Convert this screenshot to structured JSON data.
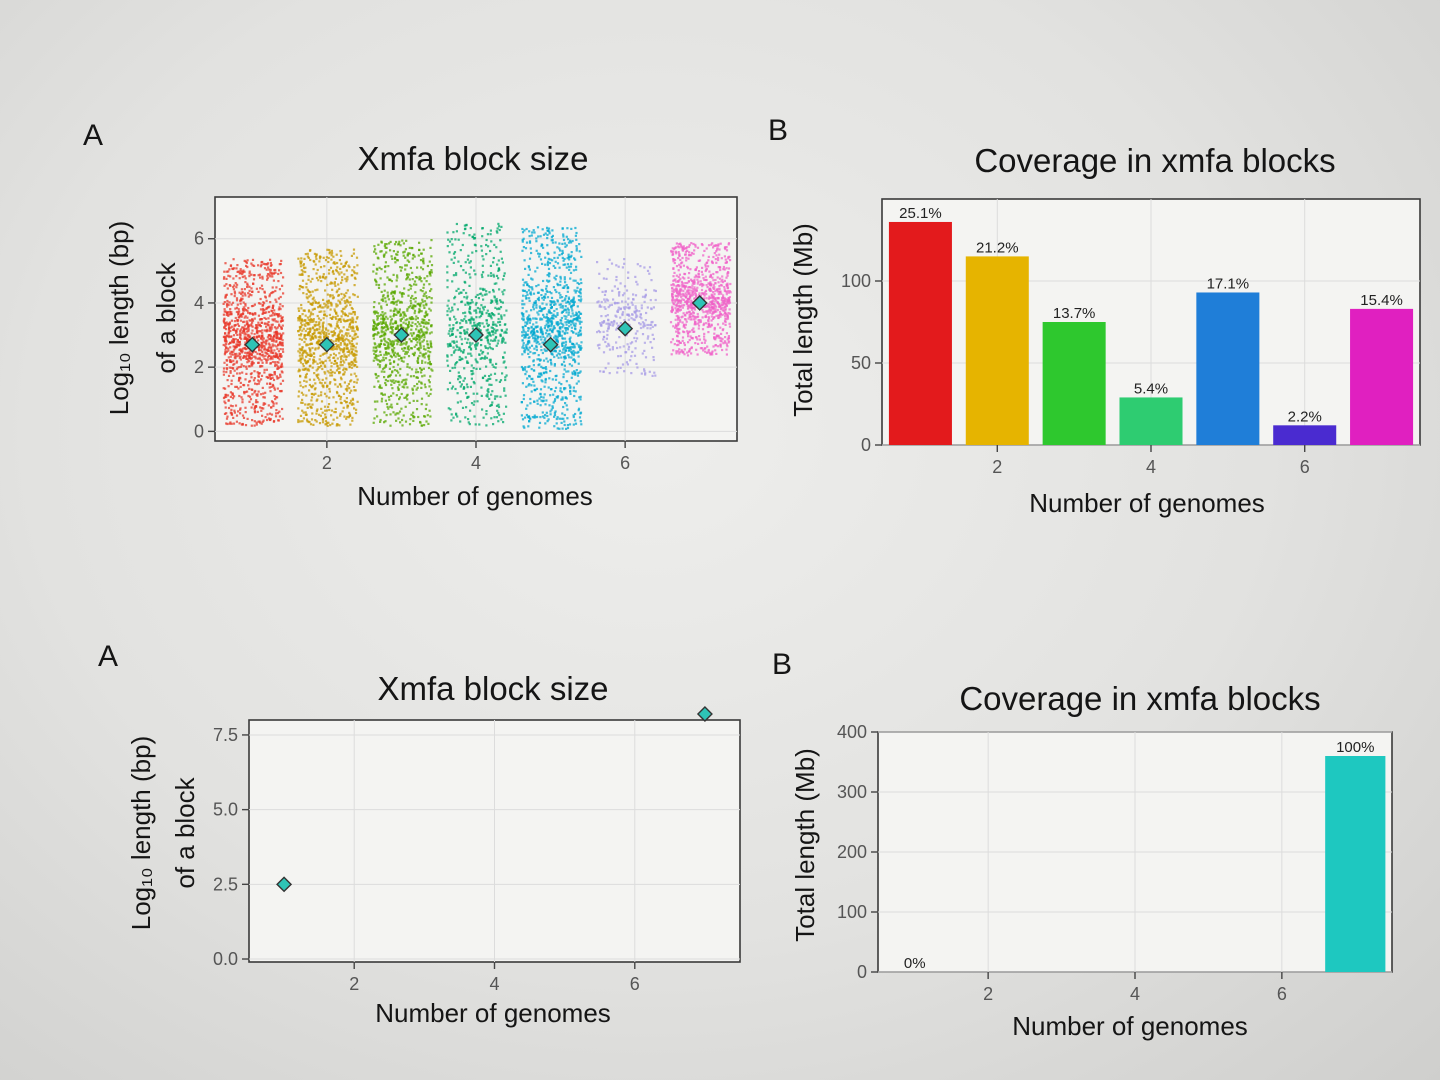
{
  "chart_data": [
    {
      "panel_label": "A",
      "type": "scatter",
      "title": "Xmfa block size",
      "xlabel": "Number of genomes",
      "ylabel_line1": "Log₁₀ length (bp)",
      "ylabel_line2": "of a block",
      "xlim": [
        0.5,
        7.5
      ],
      "ylim": [
        -0.3,
        7.3
      ],
      "xticks": [
        2,
        4,
        6
      ],
      "yticks": [
        0,
        2,
        4,
        6
      ],
      "ytick_labels": [
        "0",
        "2",
        "4",
        "6"
      ],
      "grid": true,
      "series": [
        {
          "x": 1,
          "color": "#e8382a",
          "min": 0.2,
          "max": 5.4,
          "density": 1.0
        },
        {
          "x": 2,
          "color": "#c79a00",
          "min": 0.2,
          "max": 5.7,
          "density": 0.9
        },
        {
          "x": 3,
          "color": "#5aa800",
          "min": 0.2,
          "max": 6.0,
          "density": 0.8
        },
        {
          "x": 4,
          "color": "#00a86b",
          "min": 0.2,
          "max": 6.5,
          "density": 0.55
        },
        {
          "x": 5,
          "color": "#00a8d0",
          "min": 0.1,
          "max": 6.4,
          "density": 0.9
        },
        {
          "x": 6,
          "color": "#a79be6",
          "min": 1.7,
          "max": 5.4,
          "density": 0.25
        },
        {
          "x": 7,
          "color": "#f062c8",
          "min": 2.4,
          "max": 5.9,
          "density": 0.8
        }
      ],
      "means": [
        {
          "x": 1,
          "y": 2.7
        },
        {
          "x": 2,
          "y": 2.7
        },
        {
          "x": 3,
          "y": 3.0
        },
        {
          "x": 4,
          "y": 3.0
        },
        {
          "x": 5,
          "y": 2.7
        },
        {
          "x": 6,
          "y": 3.2
        },
        {
          "x": 7,
          "y": 4.0
        }
      ],
      "mean_marker_color": "#2ec4b6"
    },
    {
      "panel_label": "B",
      "type": "bar",
      "title": "Coverage in xmfa blocks",
      "xlabel": "Number of genomes",
      "ylabel": "Total length (Mb)",
      "xlim": [
        0.5,
        7.5
      ],
      "ylim": [
        0,
        150
      ],
      "xticks": [
        2,
        4,
        6
      ],
      "yticks": [
        0,
        50,
        100
      ],
      "ytick_labels": [
        "0",
        "50",
        "100"
      ],
      "grid": true,
      "x": [
        1,
        2,
        3,
        4,
        5,
        6,
        7
      ],
      "values": [
        136,
        115,
        75,
        29,
        93,
        12,
        83
      ],
      "labels": [
        "25.1%",
        "21.2%",
        "13.7%",
        "5.4%",
        "17.1%",
        "2.2%",
        "15.4%"
      ],
      "colors": [
        "#e31a1c",
        "#e6b400",
        "#2ec82e",
        "#2ecc71",
        "#1f7ed8",
        "#4a2bd0",
        "#e020c0"
      ]
    },
    {
      "panel_label": "A",
      "type": "scatter",
      "title": "Xmfa block size",
      "xlabel": "Number of genomes",
      "ylabel_line1": "Log₁₀ length (bp)",
      "ylabel_line2": "of a block",
      "xlim": [
        0.5,
        7.5
      ],
      "ylim": [
        -0.1,
        8.0
      ],
      "xticks": [
        2,
        4,
        6
      ],
      "yticks": [
        0,
        2.5,
        5,
        7.5
      ],
      "ytick_labels": [
        "0.0",
        "2.5",
        "5.0",
        "7.5"
      ],
      "grid": true,
      "points": [
        {
          "x": 1,
          "y": 2.5
        },
        {
          "x": 7,
          "y": 8.2
        }
      ],
      "point_color": "#2ec4b6"
    },
    {
      "panel_label": "B",
      "type": "bar",
      "title": "Coverage in xmfa blocks",
      "xlabel": "Number of genomes",
      "ylabel": "Total length (Mb)",
      "xlim": [
        0.5,
        7.5
      ],
      "ylim": [
        0,
        400
      ],
      "xticks": [
        2,
        4,
        6
      ],
      "yticks": [
        0,
        100,
        200,
        300,
        400
      ],
      "ytick_labels": [
        "0",
        "100",
        "200",
        "300",
        "400"
      ],
      "grid": true,
      "x": [
        1,
        7
      ],
      "values": [
        0,
        360
      ],
      "labels": [
        "0%",
        "100%"
      ],
      "colors": [
        "#1ec8c0",
        "#1ec8c0"
      ]
    }
  ]
}
